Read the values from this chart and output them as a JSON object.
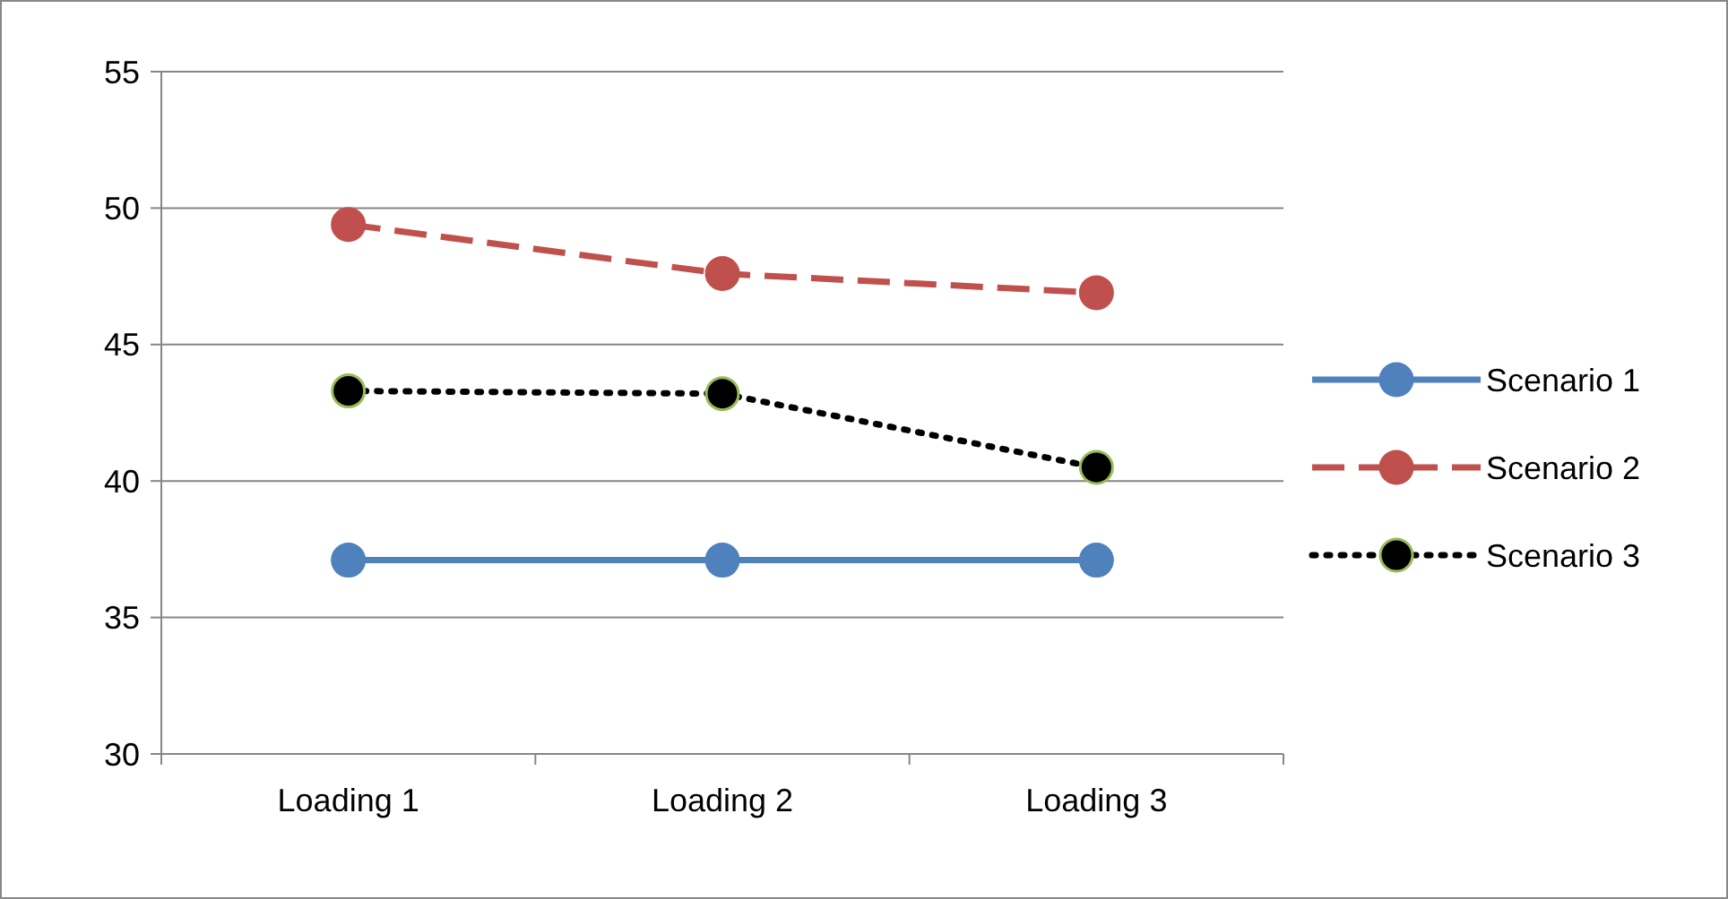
{
  "chart_data": {
    "type": "line",
    "categories": [
      "Loading 1",
      "Loading 2",
      "Loading 3"
    ],
    "series": [
      {
        "name": "Scenario 1",
        "color": "#4f81bd",
        "values": [
          37.1,
          37.1,
          37.1
        ],
        "line_style": "solid"
      },
      {
        "name": "Scenario 2",
        "color": "#c0504d",
        "values": [
          49.4,
          47.6,
          46.9
        ],
        "line_style": "dashed"
      },
      {
        "name": "Scenario 3",
        "color": "#000000",
        "values": [
          43.3,
          43.2,
          40.5
        ],
        "line_style": "dotted"
      }
    ],
    "ylim": [
      30,
      55
    ],
    "yticks": [
      30,
      35,
      40,
      45,
      50,
      55
    ],
    "grid": "y",
    "legend": "right",
    "marker": "circle"
  }
}
